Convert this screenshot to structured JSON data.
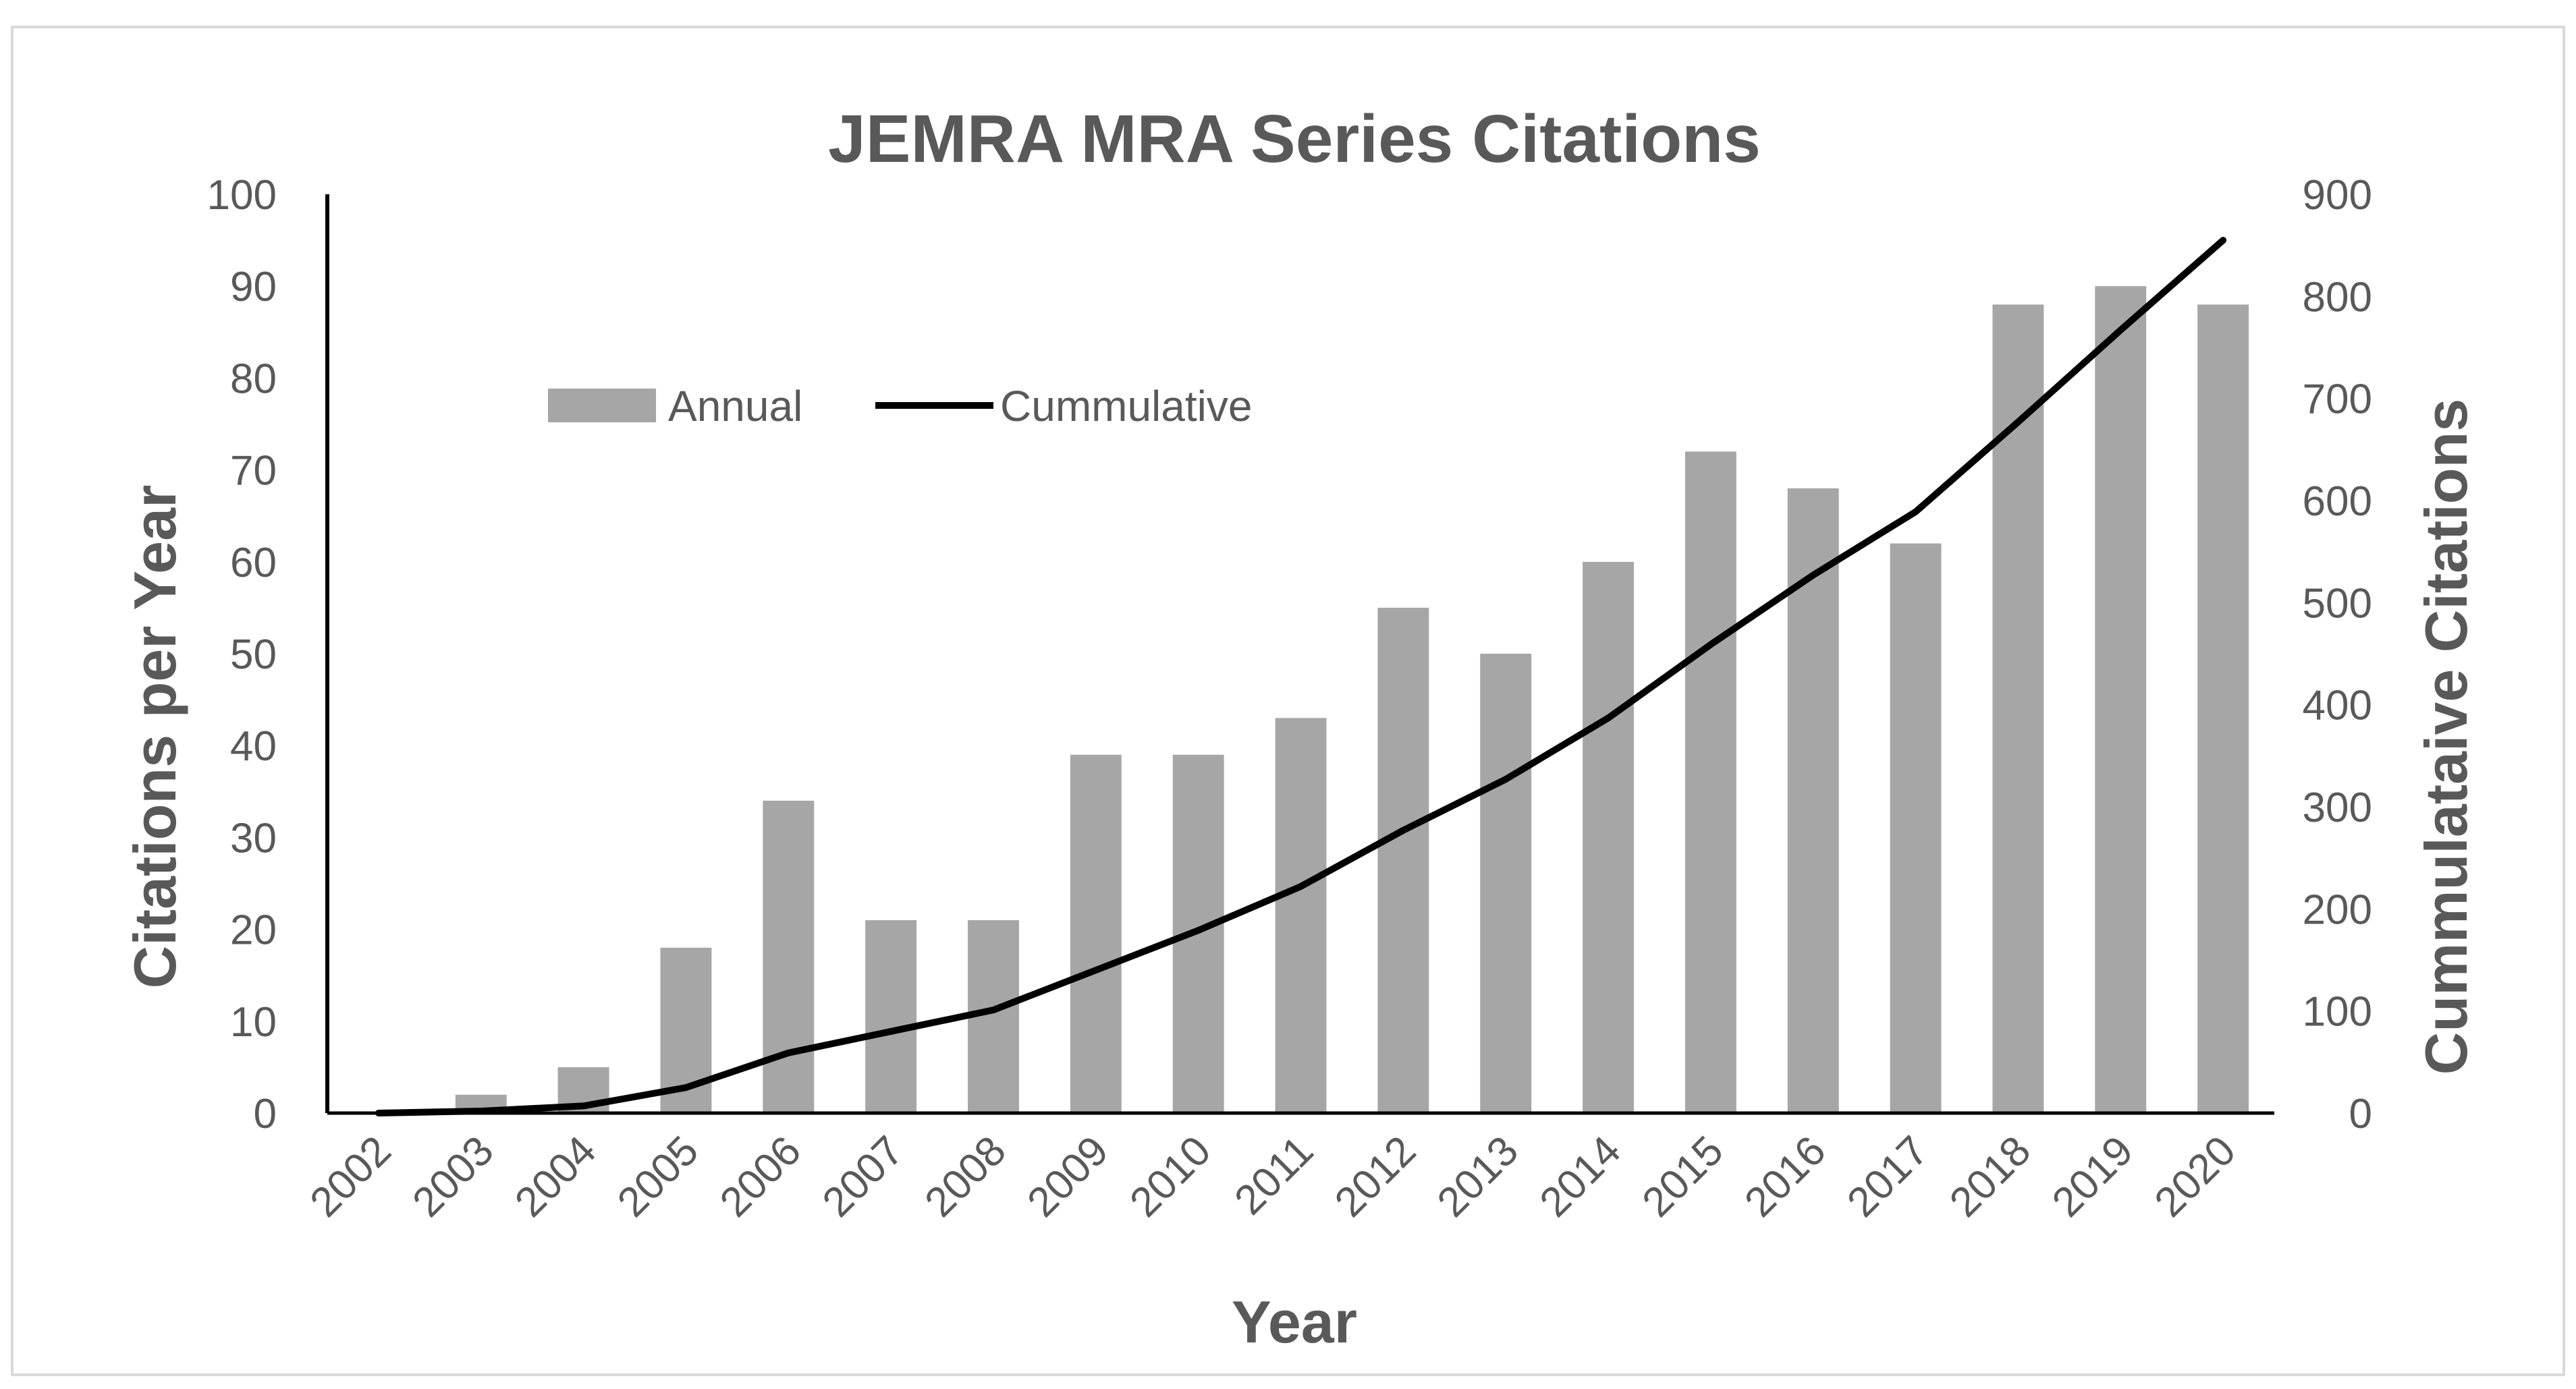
{
  "chart_data": {
    "type": "bar",
    "title": "JEMRA  MRA Series Citations",
    "xlabel": "Year",
    "ylabel": "Citations per  Year",
    "y2label": "Cummulataive Citations",
    "categories": [
      "2002",
      "2003",
      "2004",
      "2005",
      "2006",
      "2007",
      "2008",
      "2009",
      "2010",
      "2011",
      "2012",
      "2013",
      "2014",
      "2015",
      "2016",
      "2017",
      "2018",
      "2019",
      "2020"
    ],
    "series": [
      {
        "name": "Annual",
        "type": "bar",
        "axis": "left",
        "color": "#a6a6a6",
        "values": [
          0,
          2,
          5,
          18,
          34,
          21,
          21,
          39,
          39,
          43,
          55,
          50,
          60,
          72,
          68,
          62,
          88,
          90,
          88
        ]
      },
      {
        "name": "Cummulative",
        "type": "line",
        "axis": "right",
        "color": "#000000",
        "values": [
          0,
          2,
          7,
          25,
          59,
          80,
          101,
          140,
          179,
          222,
          277,
          327,
          387,
          459,
          527,
          589,
          677,
          767,
          855
        ]
      }
    ],
    "ylim": [
      0,
      100
    ],
    "y2lim": [
      0,
      900
    ],
    "yticks": [
      "0",
      "10",
      "20",
      "30",
      "40",
      "50",
      "60",
      "70",
      "80",
      "90",
      "100"
    ],
    "y2ticks": [
      "0",
      "100",
      "200",
      "300",
      "400",
      "500",
      "600",
      "700",
      "800",
      "900"
    ],
    "grid": false,
    "legend": "top-left"
  }
}
